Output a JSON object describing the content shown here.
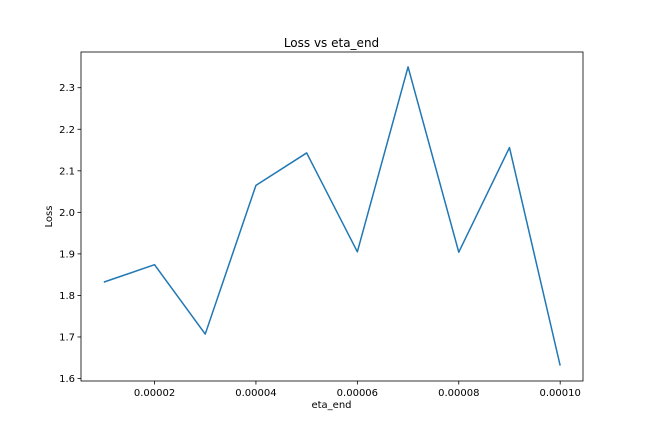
{
  "chart_data": {
    "type": "line",
    "title": "Loss vs eta_end",
    "xlabel": "eta_end",
    "ylabel": "Loss",
    "xlim": [
      5.5e-06,
      0.0001045
    ],
    "ylim": [
      1.594,
      2.386
    ],
    "xticks": [
      2e-05,
      4e-05,
      6e-05,
      8e-05,
      0.0001
    ],
    "xtick_labels": [
      "0.00002",
      "0.00004",
      "0.00006",
      "0.00008",
      "0.00010"
    ],
    "yticks": [
      1.6,
      1.7,
      1.8,
      1.9,
      2.0,
      2.1,
      2.2,
      2.3
    ],
    "ytick_labels": [
      "1.6",
      "1.7",
      "1.8",
      "1.9",
      "2.0",
      "2.1",
      "2.2",
      "2.3"
    ],
    "grid": false,
    "series": [
      {
        "color": "#1f77b4",
        "x": [
          1e-05,
          2e-05,
          3e-05,
          4e-05,
          5e-05,
          6e-05,
          7e-05,
          8e-05,
          9e-05,
          0.0001
        ],
        "y": [
          1.832,
          1.874,
          1.707,
          2.065,
          2.143,
          1.905,
          2.35,
          1.904,
          2.156,
          1.631
        ]
      }
    ]
  }
}
